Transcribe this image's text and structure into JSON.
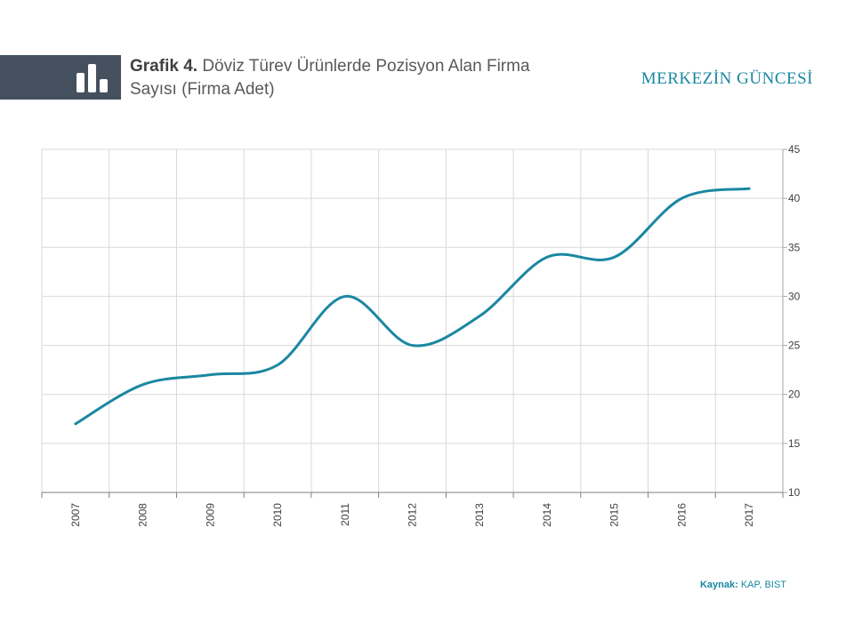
{
  "header": {
    "figure_label": "Grafik 4.",
    "title_line1": "Döviz Türev Ürünlerde Pozisyon Alan Firma",
    "title_line2": "Sayısı (Firma Adet)",
    "brand": "MERKEZİN GÜNCESİ",
    "icon": "bar-chart-icon"
  },
  "footer": {
    "source_label": "Kaynak:",
    "source_value": "KAP, BIST"
  },
  "colors": {
    "line": "#1a87a1",
    "accent": "#1a87a1",
    "header_block": "#44505e",
    "grid": "#d9d9d9"
  },
  "chart_data": {
    "type": "line",
    "title": "Döviz Türev Ürünlerde Pozisyon Alan Firma Sayısı (Firma Adet)",
    "xlabel": "",
    "ylabel": "",
    "categories": [
      "2007",
      "2008",
      "2009",
      "2010",
      "2011",
      "2012",
      "2013",
      "2014",
      "2015",
      "2016",
      "2017"
    ],
    "series": [
      {
        "values": [
          17,
          21,
          22,
          23,
          30,
          25,
          28,
          34,
          34,
          40,
          41
        ]
      }
    ],
    "ylim": [
      10,
      45
    ],
    "yticks": [
      10,
      15,
      20,
      25,
      30,
      35,
      40,
      45
    ],
    "y_axis_side": "right",
    "smooth": true,
    "grid": true,
    "legend": "none"
  }
}
